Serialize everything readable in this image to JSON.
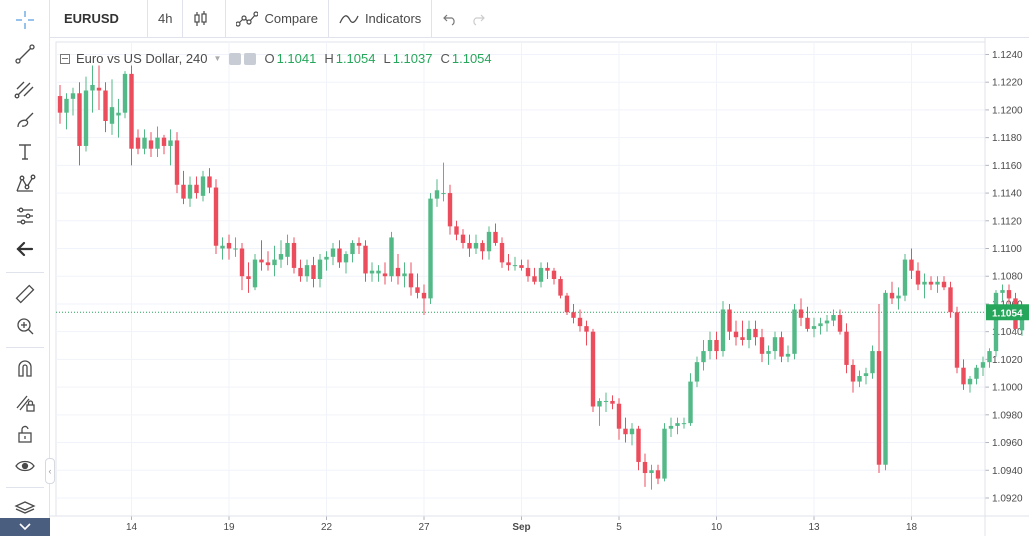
{
  "toolbar": {
    "symbol": "EURUSD",
    "interval": "4h",
    "compare_label": "Compare",
    "indicators_label": "Indicators"
  },
  "left_tools": [
    "crosshair-icon",
    "trend-line-icon",
    "pitchfork-icon",
    "brush-icon",
    "text-icon",
    "pattern-icon",
    "prediction-icon",
    "back-arrow-icon",
    "ruler-icon",
    "zoom-in-icon",
    "magnet-icon",
    "lock-drawing-icon",
    "unlock-icon",
    "eye-icon",
    "layers-icon"
  ],
  "legend": {
    "title": "Euro vs US Dollar, 240",
    "o_label": "O",
    "o_value": "1.1041",
    "h_label": "H",
    "h_value": "1.1054",
    "l_label": "L",
    "l_value": "1.1037",
    "c_label": "C",
    "c_value": "1.1054"
  },
  "colors": {
    "up": "#53b987",
    "down": "#eb4d5c",
    "grid": "#f0f3fa",
    "price_line": "#26a65b",
    "axis_border": "#e0e3eb"
  },
  "chart_data": {
    "type": "candlestick",
    "series_name": "EURUSD",
    "ylim": [
      1.0907,
      1.1249
    ],
    "yticks": [
      "1.1240",
      "1.1220",
      "1.1200",
      "1.1180",
      "1.1160",
      "1.1140",
      "1.1120",
      "1.1100",
      "1.1080",
      "1.1060",
      "1.1040",
      "1.1020",
      "1.1000",
      "1.0980",
      "1.0960",
      "1.0940",
      "1.0920"
    ],
    "xtick_labels": [
      {
        "label": "14",
        "index": 11
      },
      {
        "label": "19",
        "index": 26
      },
      {
        "label": "22",
        "index": 41
      },
      {
        "label": "27",
        "index": 56
      },
      {
        "label": "Sep",
        "index": 71
      },
      {
        "label": "5",
        "index": 86
      },
      {
        "label": "10",
        "index": 101
      },
      {
        "label": "13",
        "index": 116
      },
      {
        "label": "18",
        "index": 131
      }
    ],
    "last_price": 1.1054,
    "last_price_label": "1.1054",
    "candles": [
      [
        1.121,
        1.1218,
        1.119,
        1.1198
      ],
      [
        1.1198,
        1.1212,
        1.1186,
        1.1208
      ],
      [
        1.1208,
        1.1216,
        1.1196,
        1.1212
      ],
      [
        1.1212,
        1.122,
        1.116,
        1.1174
      ],
      [
        1.1174,
        1.1224,
        1.117,
        1.1214
      ],
      [
        1.1214,
        1.1232,
        1.1198,
        1.1218
      ],
      [
        1.1216,
        1.1232,
        1.12,
        1.1214
      ],
      [
        1.1214,
        1.122,
        1.1184,
        1.1192
      ],
      [
        1.119,
        1.1222,
        1.1182,
        1.1202
      ],
      [
        1.1196,
        1.1208,
        1.118,
        1.1198
      ],
      [
        1.1198,
        1.1228,
        1.1194,
        1.1226
      ],
      [
        1.1226,
        1.1232,
        1.116,
        1.1172
      ],
      [
        1.118,
        1.1186,
        1.1168,
        1.1172
      ],
      [
        1.1172,
        1.1186,
        1.1168,
        1.118
      ],
      [
        1.1178,
        1.1184,
        1.1166,
        1.1172
      ],
      [
        1.1172,
        1.1188,
        1.1166,
        1.118
      ],
      [
        1.118,
        1.1182,
        1.1168,
        1.1174
      ],
      [
        1.1174,
        1.1186,
        1.116,
        1.1178
      ],
      [
        1.1178,
        1.1184,
        1.114,
        1.1146
      ],
      [
        1.1146,
        1.1156,
        1.1132,
        1.1136
      ],
      [
        1.1136,
        1.1152,
        1.113,
        1.1146
      ],
      [
        1.1146,
        1.1152,
        1.1136,
        1.114
      ],
      [
        1.1138,
        1.1156,
        1.1134,
        1.1152
      ],
      [
        1.1152,
        1.1158,
        1.114,
        1.1144
      ],
      [
        1.1144,
        1.115,
        1.1096,
        1.1102
      ],
      [
        1.11,
        1.1108,
        1.1092,
        1.1102
      ],
      [
        1.1104,
        1.111,
        1.1092,
        1.11
      ],
      [
        1.11,
        1.1108,
        1.1094,
        1.11
      ],
      [
        1.11,
        1.1104,
        1.107,
        1.108
      ],
      [
        1.108,
        1.109,
        1.1068,
        1.1078
      ],
      [
        1.1072,
        1.1096,
        1.107,
        1.1092
      ],
      [
        1.1092,
        1.1106,
        1.1084,
        1.109
      ],
      [
        1.109,
        1.1098,
        1.1084,
        1.1088
      ],
      [
        1.1088,
        1.1102,
        1.108,
        1.1092
      ],
      [
        1.1092,
        1.1106,
        1.1086,
        1.1096
      ],
      [
        1.1094,
        1.111,
        1.1088,
        1.1104
      ],
      [
        1.1104,
        1.1108,
        1.1082,
        1.1086
      ],
      [
        1.1086,
        1.1092,
        1.1076,
        1.108
      ],
      [
        1.108,
        1.1092,
        1.1076,
        1.1088
      ],
      [
        1.1088,
        1.1094,
        1.1072,
        1.1078
      ],
      [
        1.1078,
        1.1096,
        1.1072,
        1.1092
      ],
      [
        1.1092,
        1.1098,
        1.1084,
        1.1094
      ],
      [
        1.1094,
        1.1104,
        1.1088,
        1.11
      ],
      [
        1.11,
        1.1106,
        1.1086,
        1.109
      ],
      [
        1.109,
        1.1098,
        1.1082,
        1.1096
      ],
      [
        1.1096,
        1.1106,
        1.109,
        1.1104
      ],
      [
        1.1104,
        1.1108,
        1.1096,
        1.1102
      ],
      [
        1.1102,
        1.1106,
        1.1076,
        1.1082
      ],
      [
        1.1082,
        1.109,
        1.1076,
        1.1084
      ],
      [
        1.1082,
        1.1088,
        1.1076,
        1.1084
      ],
      [
        1.1082,
        1.109,
        1.1074,
        1.108
      ],
      [
        1.108,
        1.1112,
        1.1076,
        1.1108
      ],
      [
        1.1086,
        1.1096,
        1.1074,
        1.108
      ],
      [
        1.108,
        1.109,
        1.1072,
        1.1082
      ],
      [
        1.1082,
        1.109,
        1.1066,
        1.1072
      ],
      [
        1.1072,
        1.1082,
        1.1064,
        1.1068
      ],
      [
        1.1068,
        1.1074,
        1.1052,
        1.1064
      ],
      [
        1.1064,
        1.114,
        1.106,
        1.1136
      ],
      [
        1.1136,
        1.115,
        1.113,
        1.1142
      ],
      [
        1.114,
        1.1162,
        1.1134,
        1.114
      ],
      [
        1.114,
        1.1146,
        1.111,
        1.1116
      ],
      [
        1.1116,
        1.112,
        1.1106,
        1.111
      ],
      [
        1.111,
        1.1114,
        1.11,
        1.1104
      ],
      [
        1.1104,
        1.111,
        1.1094,
        1.11
      ],
      [
        1.11,
        1.111,
        1.1096,
        1.1104
      ],
      [
        1.1104,
        1.1106,
        1.1092,
        1.1098
      ],
      [
        1.1098,
        1.1116,
        1.1092,
        1.1112
      ],
      [
        1.1112,
        1.1118,
        1.1102,
        1.1104
      ],
      [
        1.1104,
        1.1108,
        1.1086,
        1.109
      ],
      [
        1.109,
        1.1096,
        1.1084,
        1.1088
      ],
      [
        1.1088,
        1.1094,
        1.1084,
        1.1088
      ],
      [
        1.1088,
        1.1092,
        1.1084,
        1.1086
      ],
      [
        1.1086,
        1.1092,
        1.1076,
        1.108
      ],
      [
        1.108,
        1.1086,
        1.1074,
        1.1076
      ],
      [
        1.1076,
        1.109,
        1.1072,
        1.1086
      ],
      [
        1.1086,
        1.109,
        1.1078,
        1.1084
      ],
      [
        1.1084,
        1.1086,
        1.1074,
        1.1078
      ],
      [
        1.1078,
        1.108,
        1.1064,
        1.1066
      ],
      [
        1.1066,
        1.1068,
        1.1052,
        1.1054
      ],
      [
        1.1054,
        1.106,
        1.1046,
        1.105
      ],
      [
        1.105,
        1.1056,
        1.104,
        1.1044
      ],
      [
        1.1044,
        1.1048,
        1.103,
        1.104
      ],
      [
        1.104,
        1.1042,
        1.0982,
        1.0986
      ],
      [
        1.0986,
        1.0992,
        1.0972,
        1.099
      ],
      [
        1.099,
        1.0996,
        1.0982,
        1.099
      ],
      [
        1.099,
        1.0994,
        1.0984,
        1.0988
      ],
      [
        1.0988,
        1.0992,
        1.0962,
        1.097
      ],
      [
        1.097,
        1.0978,
        1.096,
        1.0966
      ],
      [
        1.0966,
        1.0974,
        1.0958,
        1.097
      ],
      [
        1.097,
        1.0972,
        1.094,
        1.0946
      ],
      [
        1.0946,
        1.0952,
        1.0928,
        1.0938
      ],
      [
        1.0938,
        1.0944,
        1.0926,
        1.094
      ],
      [
        1.094,
        1.0944,
        1.093,
        1.0934
      ],
      [
        1.0934,
        1.0974,
        1.0932,
        1.097
      ],
      [
        1.097,
        1.0978,
        1.0964,
        1.0972
      ],
      [
        1.0972,
        1.0978,
        1.0966,
        1.0974
      ],
      [
        1.0974,
        1.0978,
        1.097,
        1.0974
      ],
      [
        1.0974,
        1.101,
        1.0972,
        1.1004
      ],
      [
        1.1004,
        1.1022,
        1.1,
        1.1018
      ],
      [
        1.1018,
        1.1034,
        1.1012,
        1.1026
      ],
      [
        1.1026,
        1.104,
        1.102,
        1.1034
      ],
      [
        1.1034,
        1.104,
        1.102,
        1.1026
      ],
      [
        1.1026,
        1.1062,
        1.1022,
        1.1056
      ],
      [
        1.1056,
        1.106,
        1.1034,
        1.104
      ],
      [
        1.104,
        1.1048,
        1.103,
        1.1036
      ],
      [
        1.1036,
        1.1048,
        1.103,
        1.1034
      ],
      [
        1.1034,
        1.1048,
        1.1028,
        1.1042
      ],
      [
        1.1042,
        1.1048,
        1.103,
        1.1036
      ],
      [
        1.1036,
        1.1042,
        1.1018,
        1.1024
      ],
      [
        1.1024,
        1.103,
        1.1016,
        1.1026
      ],
      [
        1.1026,
        1.104,
        1.102,
        1.1036
      ],
      [
        1.1036,
        1.104,
        1.1018,
        1.1022
      ],
      [
        1.1022,
        1.103,
        1.1018,
        1.1024
      ],
      [
        1.1024,
        1.106,
        1.102,
        1.1056
      ],
      [
        1.1056,
        1.1064,
        1.1044,
        1.105
      ],
      [
        1.105,
        1.1058,
        1.104,
        1.1042
      ],
      [
        1.1042,
        1.105,
        1.1036,
        1.1044
      ],
      [
        1.1044,
        1.105,
        1.1038,
        1.1046
      ],
      [
        1.1046,
        1.1052,
        1.104,
        1.1048
      ],
      [
        1.1048,
        1.1056,
        1.1044,
        1.1052
      ],
      [
        1.1052,
        1.1056,
        1.1038,
        1.104
      ],
      [
        1.104,
        1.1046,
        1.101,
        1.1016
      ],
      [
        1.1016,
        1.102,
        1.0996,
        1.1004
      ],
      [
        1.1004,
        1.1012,
        1.1,
        1.1008
      ],
      [
        1.1008,
        1.1014,
        1.1002,
        1.101
      ],
      [
        1.101,
        1.103,
        1.1006,
        1.1026
      ],
      [
        1.1026,
        1.106,
        1.0938,
        1.0944
      ],
      [
        1.0944,
        1.107,
        1.094,
        1.1068
      ],
      [
        1.1068,
        1.1076,
        1.106,
        1.1064
      ],
      [
        1.1064,
        1.1072,
        1.1056,
        1.1066
      ],
      [
        1.1066,
        1.1096,
        1.1062,
        1.1092
      ],
      [
        1.1092,
        1.11,
        1.1078,
        1.1084
      ],
      [
        1.1084,
        1.109,
        1.107,
        1.1074
      ],
      [
        1.1074,
        1.1082,
        1.1064,
        1.1076
      ],
      [
        1.1076,
        1.108,
        1.107,
        1.1074
      ],
      [
        1.1074,
        1.108,
        1.1068,
        1.1076
      ],
      [
        1.1076,
        1.108,
        1.107,
        1.1072
      ],
      [
        1.1072,
        1.1076,
        1.105,
        1.1054
      ],
      [
        1.1054,
        1.1058,
        1.101,
        1.1014
      ],
      [
        1.1014,
        1.102,
        1.0998,
        1.1002
      ],
      [
        1.1002,
        1.1008,
        1.0996,
        1.1006
      ],
      [
        1.1006,
        1.1016,
        1.1002,
        1.1014
      ],
      [
        1.1014,
        1.1022,
        1.1008,
        1.1018
      ],
      [
        1.1018,
        1.1028,
        1.1014,
        1.1026
      ],
      [
        1.1026,
        1.107,
        1.1022,
        1.1068
      ],
      [
        1.1068,
        1.1074,
        1.1062,
        1.107
      ],
      [
        1.107,
        1.1074,
        1.106,
        1.1064
      ],
      [
        1.1064,
        1.1068,
        1.1038,
        1.1042
      ],
      [
        1.1041,
        1.1054,
        1.1037,
        1.1054
      ]
    ]
  }
}
